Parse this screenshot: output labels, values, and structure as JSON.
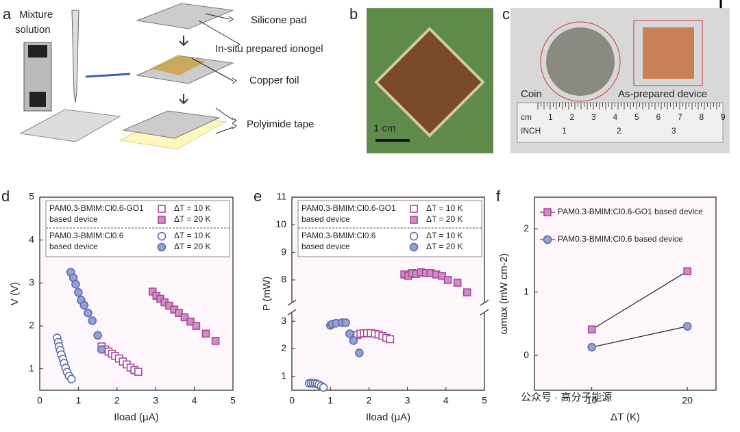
{
  "panels": {
    "a": {
      "label": "a",
      "mixture": [
        "Mixture",
        "solution"
      ],
      "silicone": "Silicone pad",
      "ionogel": "In-situ prepared ionogel",
      "copper": "Copper foil",
      "polyimide": "Polyimide tape"
    },
    "b": {
      "label": "b",
      "scale": "1 cm"
    },
    "c": {
      "label": "c",
      "coin": "Coin",
      "device": "As-prepared device",
      "cm": "cm",
      "inch": "INCH",
      "cm_ticks": [
        1,
        2,
        3,
        4,
        5,
        6,
        7,
        8,
        9
      ],
      "inch_ticks": [
        1,
        2,
        3
      ]
    }
  },
  "watermark": "公众号 · 高分子能源",
  "chart_data": [
    {
      "type": "scatter",
      "label": "d",
      "xlabel": "Iload (μA)",
      "ylabel": "V (V)",
      "xlim": [
        0,
        5
      ],
      "xticks": [
        0,
        1,
        2,
        3,
        4,
        5
      ],
      "ylim": [
        0.5,
        5
      ],
      "yticks": [
        1,
        2,
        3,
        4,
        5
      ],
      "groups": [
        {
          "label": [
            "PAM0.3-BMIM:Cl0.6-GO1",
            "based device"
          ],
          "series": [
            {
              "name": "ΔT = 10 K",
              "marker": "square",
              "color": "#a8479a",
              "fill": "#ffffff",
              "x": [
                1.6,
                1.7,
                1.78,
                1.87,
                1.95,
                2.05,
                2.15,
                2.25,
                2.35,
                2.45,
                2.55
              ],
              "values": [
                1.52,
                1.45,
                1.4,
                1.35,
                1.3,
                1.24,
                1.17,
                1.1,
                1.03,
                0.97,
                0.93
              ]
            },
            {
              "name": "ΔT = 20 K",
              "marker": "square",
              "color": "#a8479a",
              "fill": "#cf8cc6",
              "x": [
                2.92,
                3.02,
                3.12,
                3.23,
                3.35,
                3.48,
                3.6,
                3.75,
                3.9,
                4.05,
                4.3,
                4.55
              ],
              "values": [
                2.8,
                2.7,
                2.63,
                2.55,
                2.47,
                2.38,
                2.3,
                2.2,
                2.1,
                2.0,
                1.82,
                1.65
              ]
            }
          ]
        },
        {
          "label": [
            "PAM0.3-BMIM:Cl0.6",
            "based device"
          ],
          "series": [
            {
              "name": "ΔT = 10 K",
              "marker": "circle",
              "color": "#5d6cab",
              "fill": "#ffffff",
              "x": [
                0.45,
                0.48,
                0.5,
                0.53,
                0.56,
                0.6,
                0.63,
                0.67,
                0.71,
                0.76,
                0.82
              ],
              "values": [
                1.72,
                1.62,
                1.52,
                1.43,
                1.33,
                1.23,
                1.13,
                1.02,
                0.92,
                0.83,
                0.76
              ]
            },
            {
              "name": "ΔT = 20 K",
              "marker": "circle",
              "color": "#5d6cab",
              "fill": "#94a0d8",
              "x": [
                0.8,
                0.87,
                0.93,
                1.0,
                1.07,
                1.15,
                1.25,
                1.36,
                1.5,
                1.6
              ],
              "values": [
                3.25,
                3.12,
                2.97,
                2.78,
                2.6,
                2.48,
                2.3,
                2.12,
                1.78,
                1.45
              ]
            }
          ]
        }
      ]
    },
    {
      "type": "scatter",
      "label": "e",
      "xlabel": "Iload (μA)",
      "ylabel": "P (mW)",
      "xlim": [
        0,
        5
      ],
      "xticks": [
        0,
        1,
        2,
        3,
        4,
        5
      ],
      "ylim": [
        0.5,
        11
      ],
      "ybreak": [
        3.3,
        7.2
      ],
      "yticks": [
        1,
        2,
        3,
        8,
        9,
        10,
        11
      ],
      "groups": [
        {
          "label": [
            "PAM0.3-BMIM:Cl0.6-GO1",
            "based device"
          ],
          "series": [
            {
              "name": "ΔT = 10 K",
              "marker": "square",
              "color": "#a8479a",
              "fill": "#ffffff",
              "x": [
                1.6,
                1.7,
                1.78,
                1.87,
                1.95,
                2.05,
                2.15,
                2.25,
                2.35,
                2.45,
                2.55
              ],
              "values": [
                2.45,
                2.5,
                2.55,
                2.56,
                2.57,
                2.57,
                2.55,
                2.52,
                2.47,
                2.4,
                2.35
              ]
            },
            {
              "name": "ΔT = 20 K",
              "marker": "square",
              "color": "#a8479a",
              "fill": "#cf8cc6",
              "x": [
                2.92,
                3.02,
                3.12,
                3.23,
                3.35,
                3.48,
                3.6,
                3.75,
                3.9,
                4.05,
                4.3,
                4.55
              ],
              "values": [
                8.2,
                8.15,
                8.25,
                8.22,
                8.28,
                8.25,
                8.25,
                8.2,
                8.15,
                8.0,
                7.9,
                7.55
              ]
            }
          ]
        },
        {
          "label": [
            "PAM0.3-BMIM:Cl0.6",
            "based device"
          ],
          "series": [
            {
              "name": "ΔT = 10 K",
              "marker": "circle",
              "color": "#5d6cab",
              "fill": "#ffffff",
              "x": [
                0.45,
                0.5,
                0.55,
                0.6,
                0.65,
                0.7,
                0.76,
                0.82
              ],
              "values": [
                0.75,
                0.76,
                0.75,
                0.75,
                0.73,
                0.7,
                0.65,
                0.6
              ]
            },
            {
              "name": "ΔT = 20 K",
              "marker": "circle",
              "color": "#5d6cab",
              "fill": "#94a0d8",
              "x": [
                1.0,
                1.05,
                1.15,
                1.3,
                1.4,
                1.5,
                1.6,
                1.75
              ],
              "values": [
                2.85,
                2.9,
                2.93,
                2.95,
                2.95,
                2.55,
                2.3,
                1.85
              ]
            }
          ]
        }
      ]
    },
    {
      "type": "line",
      "label": "f",
      "xlabel": "ΔT (K)",
      "ylabel": "ωmax (mW cm-2)",
      "x": [
        10,
        20
      ],
      "xlim": [
        4,
        23
      ],
      "xticks": [
        10,
        20
      ],
      "ylim": [
        -0.55,
        2.5
      ],
      "yticks": [
        0,
        1,
        2
      ],
      "groups": [
        {
          "series": [
            {
              "name": "PAM0.3-BMIM:Cl0.6-GO1 based device",
              "marker": "square",
              "color": "#a8479a",
              "fill": "#cf8cc6",
              "values": [
                0.41,
                1.33
              ]
            },
            {
              "name": "PAM0.3-BMIM:Cl0.6 based device",
              "marker": "circle",
              "color": "#5d6cab",
              "fill": "#94a0d8",
              "values": [
                0.13,
                0.46
              ]
            }
          ]
        }
      ]
    }
  ]
}
